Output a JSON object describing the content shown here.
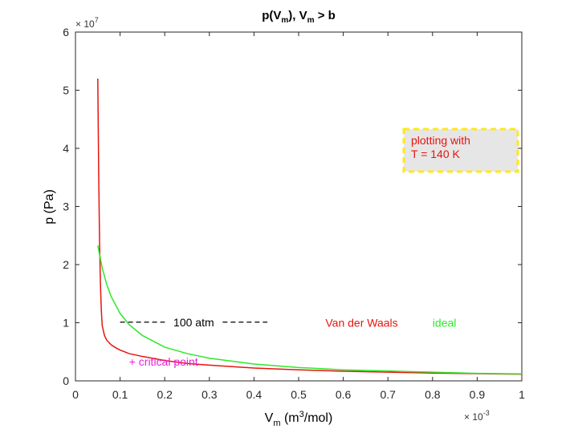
{
  "chart_data": {
    "type": "line",
    "title_parts": [
      "p(V",
      "m",
      "), V",
      "m",
      " > b"
    ],
    "xlabel_parts": [
      "V",
      "m",
      " (m",
      "3",
      "/mol)"
    ],
    "ylabel": "p (Pa)",
    "x_exponent_label": "× 10",
    "x_exponent_power": "-3",
    "y_exponent_label": "× 10",
    "y_exponent_power": "7",
    "xlim": [
      0,
      1
    ],
    "ylim": [
      0,
      6
    ],
    "x_ticks": [
      0,
      0.1,
      0.2,
      0.3,
      0.4,
      0.5,
      0.6,
      0.7,
      0.8,
      0.9,
      1
    ],
    "x_tick_labels": [
      "0",
      "0.1",
      "0.2",
      "0.3",
      "0.4",
      "0.5",
      "0.6",
      "0.7",
      "0.8",
      "0.9",
      "1"
    ],
    "y_ticks": [
      0,
      1,
      2,
      3,
      4,
      5,
      6
    ],
    "y_tick_labels": [
      "0",
      "1",
      "2",
      "3",
      "4",
      "5",
      "6"
    ],
    "grid": false,
    "series": [
      {
        "name": "Van der Waals",
        "color": "#e8140e",
        "x": [
          0.05,
          0.052,
          0.054,
          0.056,
          0.058,
          0.06,
          0.065,
          0.07,
          0.08,
          0.09,
          0.1,
          0.12,
          0.15,
          0.2,
          0.25,
          0.3,
          0.4,
          0.5,
          0.6,
          0.7,
          0.8,
          0.9,
          1.0
        ],
        "y": [
          5.2,
          3.6,
          2.4,
          1.65,
          1.2,
          0.95,
          0.78,
          0.7,
          0.62,
          0.57,
          0.53,
          0.47,
          0.42,
          0.35,
          0.3,
          0.27,
          0.22,
          0.19,
          0.165,
          0.15,
          0.135,
          0.125,
          0.115
        ]
      },
      {
        "name": "ideal",
        "color": "#2ee82a",
        "x": [
          0.05,
          0.06,
          0.07,
          0.08,
          0.1,
          0.12,
          0.15,
          0.2,
          0.25,
          0.3,
          0.4,
          0.5,
          0.6,
          0.7,
          0.8,
          0.9,
          1.0
        ],
        "y": [
          2.33,
          1.94,
          1.66,
          1.45,
          1.16,
          0.97,
          0.78,
          0.58,
          0.47,
          0.39,
          0.29,
          0.23,
          0.19,
          0.17,
          0.15,
          0.13,
          0.12
        ]
      }
    ],
    "annotations": {
      "reference_line": {
        "label": "100 atm",
        "y": 1.01,
        "x_start": 0.1,
        "x_end": 0.43,
        "x_label": 0.265,
        "color": "#000000"
      },
      "legend_vdw": {
        "text": "Van der Waals",
        "x": 0.56,
        "y": 1.0,
        "color": "#e8140e"
      },
      "legend_ideal": {
        "text": "ideal",
        "x": 0.8,
        "y": 1.0,
        "color": "#2ee82a"
      },
      "critical_point": {
        "text": "+ critical point",
        "x": 0.12,
        "y": 0.33,
        "color": "#e81ee0"
      },
      "info_box": {
        "lines": [
          "plotting with",
          "T = 140 K"
        ],
        "color": "#e8140e",
        "background": "#e6e6e6",
        "border": "#ffe81a"
      }
    }
  }
}
